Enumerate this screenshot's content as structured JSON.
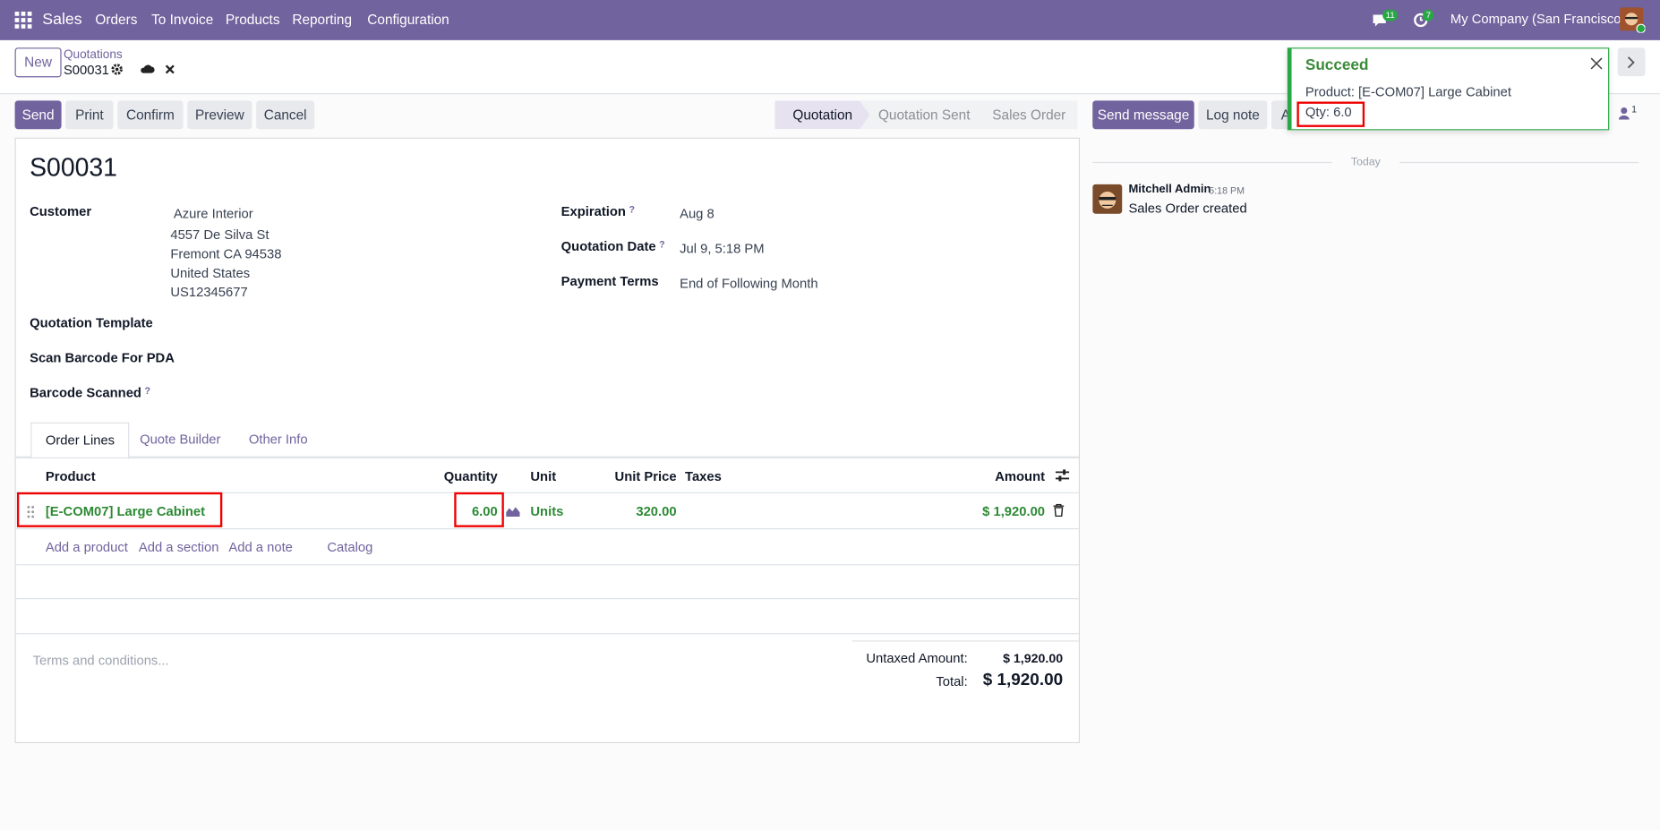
{
  "navbar": {
    "app": "Sales",
    "menu": [
      "Orders",
      "To Invoice",
      "Products",
      "Reporting",
      "Configuration"
    ],
    "messages_badge": 11,
    "activities_badge": 7,
    "company": "My Company (San Francisco)"
  },
  "control_panel": {
    "new_button": "New",
    "breadcrumb": "Quotations",
    "record": "S00031"
  },
  "actions": [
    "Send",
    "Print",
    "Confirm",
    "Preview",
    "Cancel"
  ],
  "status_bar": [
    "Quotation",
    "Quotation Sent",
    "Sales Order"
  ],
  "notification": {
    "title": "Succeed",
    "product": "Product: [E-COM07] Large Cabinet",
    "qty": "Qty: 6.0"
  },
  "chatter": {
    "buttons": [
      "Send message",
      "Log note",
      "A"
    ],
    "followers": 1,
    "date_separator": "Today",
    "message": {
      "author": "Mitchell Admin",
      "time": "5:18 PM",
      "body": "Sales Order created"
    }
  },
  "form": {
    "title": "S00031",
    "customer": {
      "label": "Customer",
      "name": "Azure Interior",
      "address": [
        "4557 De Silva St",
        "Fremont CA 94538",
        "United States",
        "US12345677"
      ]
    },
    "right_fields": [
      {
        "label": "Expiration",
        "help": "?",
        "value": "Aug 8"
      },
      {
        "label": "Quotation Date",
        "help": "?",
        "value": "Jul 9, 5:18 PM"
      },
      {
        "label": "Payment Terms",
        "value": "End of Following Month"
      }
    ],
    "left_fields": [
      {
        "label": "Quotation Template"
      },
      {
        "label": "Scan Barcode For PDA"
      },
      {
        "label": "Barcode Scanned",
        "help": "?"
      }
    ],
    "tabs": [
      "Order Lines",
      "Quote Builder",
      "Other Info"
    ],
    "table": {
      "headers": [
        "Product",
        "Quantity",
        "Unit",
        "Unit Price",
        "Taxes",
        "Amount"
      ],
      "rows": [
        {
          "product": "[E-COM07] Large Cabinet",
          "quantity": "6.00",
          "unit": "Units",
          "unit_price": "320.00",
          "amount": "$ 1,920.00"
        }
      ],
      "add_links": [
        "Add a product",
        "Add a section",
        "Add a note",
        "Catalog"
      ]
    },
    "terms_placeholder": "Terms and conditions...",
    "totals": {
      "untaxed_label": "Untaxed Amount:",
      "untaxed": "$ 1,920.00",
      "total_label": "Total:",
      "total": "$ 1,920.00"
    }
  }
}
